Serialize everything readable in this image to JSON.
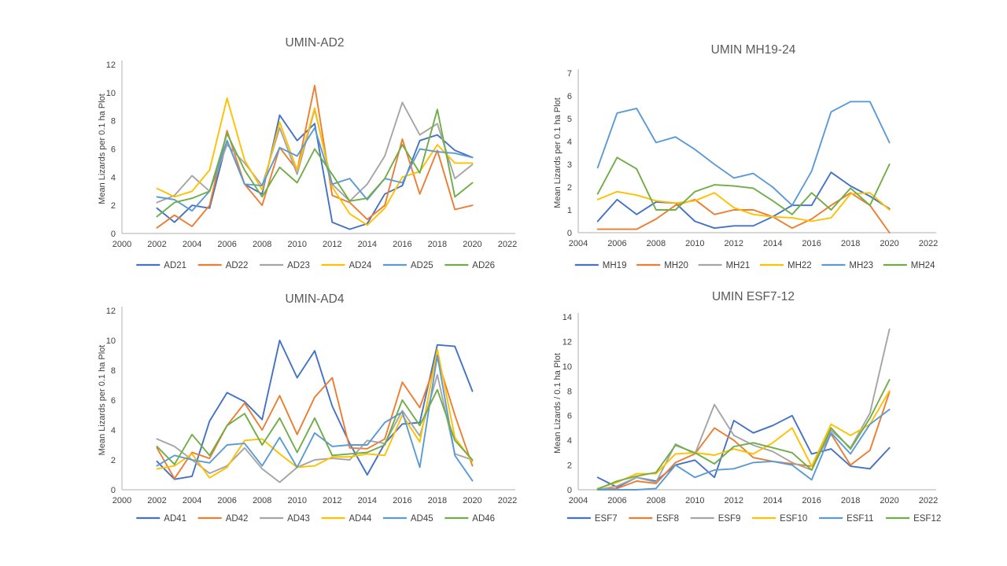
{
  "page": {
    "background": "#ffffff",
    "title_color": "#595959",
    "tick_color": "#404040",
    "axis_color": "#bfbfbf"
  },
  "palette": {
    "blue": "#4472C4",
    "orange": "#ED7D31",
    "gray": "#A5A5A5",
    "yellow": "#FFC000",
    "light_blue": "#5B9BD5",
    "green": "#70AD47"
  },
  "chart_data": [
    {
      "type": "line",
      "title": "UMIN-AD2",
      "xlabel": "",
      "ylabel": "Mean Lizards per 0.1 ha Plot",
      "xlim": [
        2000,
        2022
      ],
      "ylim": [
        0,
        12
      ],
      "x_ticks": [
        2000,
        2002,
        2004,
        2006,
        2008,
        2010,
        2012,
        2014,
        2016,
        2018,
        2020,
        2022
      ],
      "y_ticks": [
        0,
        2,
        4,
        6,
        8,
        10,
        12
      ],
      "grid": false,
      "legend_position": "bottom",
      "x": [
        2002,
        2003,
        2004,
        2005,
        2006,
        2007,
        2008,
        2009,
        2010,
        2011,
        2012,
        2013,
        2014,
        2015,
        2016,
        2017,
        2018,
        2019,
        2020
      ],
      "series": [
        {
          "name": "AD21",
          "color": "#4472C4",
          "values": [
            1.8,
            0.8,
            2.0,
            1.8,
            6.6,
            3.5,
            2.8,
            8.4,
            6.6,
            7.8,
            0.8,
            0.3,
            0.7,
            2.8,
            3.4,
            6.6,
            7.0,
            5.9,
            5.4
          ]
        },
        {
          "name": "AD22",
          "color": "#ED7D31",
          "values": [
            0.4,
            1.3,
            0.5,
            2.0,
            7.3,
            3.5,
            2.0,
            6.1,
            4.5,
            10.5,
            2.7,
            2.2,
            1.0,
            2.0,
            6.7,
            2.8,
            5.9,
            1.7,
            2.0
          ]
        },
        {
          "name": "AD23",
          "color": "#A5A5A5",
          "values": [
            2.2,
            2.7,
            4.1,
            3.0,
            6.3,
            5.0,
            3.4,
            7.5,
            4.2,
            8.8,
            3.5,
            2.3,
            3.5,
            5.5,
            9.3,
            7.0,
            7.8,
            3.9,
            4.9
          ]
        },
        {
          "name": "AD24",
          "color": "#FFC000",
          "values": [
            3.2,
            2.6,
            3.0,
            4.5,
            9.6,
            5.2,
            3.1,
            7.9,
            4.5,
            8.9,
            3.3,
            1.4,
            0.6,
            1.8,
            4.0,
            4.4,
            6.3,
            5.0,
            5.0
          ]
        },
        {
          "name": "AD25",
          "color": "#5B9BD5",
          "values": [
            2.6,
            2.4,
            1.6,
            3.0,
            6.6,
            3.5,
            3.4,
            6.1,
            5.5,
            7.5,
            3.5,
            3.9,
            2.4,
            3.9,
            3.6,
            6.0,
            5.8,
            5.7,
            5.4
          ]
        },
        {
          "name": "AD26",
          "color": "#70AD47",
          "values": [
            1.2,
            2.2,
            2.5,
            3.0,
            7.1,
            4.5,
            2.6,
            4.7,
            3.6,
            6.0,
            4.2,
            2.3,
            2.5,
            3.9,
            6.3,
            4.3,
            8.8,
            2.6,
            3.6
          ]
        }
      ]
    },
    {
      "type": "line",
      "title": "UMIN MH19-24",
      "xlabel": "",
      "ylabel": "Mean Lizards per 0.1 ha Plot",
      "xlim": [
        2004,
        2022
      ],
      "ylim": [
        0,
        7
      ],
      "x_ticks": [
        2004,
        2006,
        2008,
        2010,
        2012,
        2014,
        2016,
        2018,
        2020,
        2022
      ],
      "y_ticks": [
        0,
        1,
        2,
        3,
        4,
        5,
        6,
        7
      ],
      "grid": false,
      "legend_position": "bottom",
      "x": [
        2005,
        2006,
        2007,
        2008,
        2009,
        2010,
        2011,
        2012,
        2013,
        2014,
        2015,
        2016,
        2017,
        2018,
        2019,
        2020
      ],
      "series": [
        {
          "name": "MH19",
          "color": "#4472C4",
          "values": [
            0.5,
            1.45,
            0.8,
            1.35,
            1.3,
            0.5,
            0.2,
            0.3,
            0.3,
            0.7,
            1.2,
            1.2,
            2.65,
            2.05,
            1.6,
            1.05
          ]
        },
        {
          "name": "MH20",
          "color": "#ED7D31",
          "values": [
            0.15,
            0.15,
            0.15,
            0.6,
            1.2,
            1.45,
            0.8,
            1.0,
            1.0,
            0.7,
            0.2,
            0.6,
            1.2,
            1.75,
            1.2,
            0.0
          ]
        },
        {
          "name": "MH21",
          "color": "#A5A5A5",
          "values": []
        },
        {
          "name": "MH22",
          "color": "#FFC000",
          "values": [
            1.45,
            1.8,
            1.65,
            1.4,
            1.3,
            1.4,
            1.75,
            1.1,
            0.8,
            0.7,
            0.65,
            0.5,
            0.65,
            1.7,
            1.75,
            1.0
          ]
        },
        {
          "name": "MH23",
          "color": "#5B9BD5",
          "values": [
            2.85,
            5.25,
            5.45,
            3.95,
            4.2,
            3.65,
            3.0,
            2.4,
            2.6,
            2.0,
            1.2,
            2.7,
            5.3,
            5.75,
            5.75,
            3.95
          ]
        },
        {
          "name": "MH24",
          "color": "#70AD47",
          "values": [
            1.7,
            3.3,
            2.8,
            1.0,
            1.0,
            1.8,
            2.1,
            2.05,
            1.95,
            1.4,
            0.8,
            1.75,
            1.0,
            1.95,
            1.2,
            3.0
          ]
        }
      ]
    },
    {
      "type": "line",
      "title": "UMIN-AD4",
      "xlabel": "",
      "ylabel": "Mean Lizards per 0.1 ha Plot",
      "xlim": [
        2000,
        2022
      ],
      "ylim": [
        0,
        12
      ],
      "x_ticks": [
        2000,
        2002,
        2004,
        2006,
        2008,
        2010,
        2012,
        2014,
        2016,
        2018,
        2020,
        2022
      ],
      "y_ticks": [
        0,
        2,
        4,
        6,
        8,
        10,
        12
      ],
      "grid": false,
      "legend_position": "bottom",
      "x": [
        2002,
        2003,
        2004,
        2005,
        2006,
        2007,
        2008,
        2009,
        2010,
        2011,
        2012,
        2013,
        2014,
        2015,
        2016,
        2017,
        2018,
        2019,
        2020
      ],
      "series": [
        {
          "name": "AD41",
          "color": "#4472C4",
          "values": [
            1.9,
            0.7,
            0.9,
            4.6,
            6.5,
            5.9,
            4.7,
            10.0,
            7.5,
            9.3,
            5.6,
            3.1,
            1.0,
            3.1,
            4.4,
            4.5,
            9.7,
            9.6,
            6.6
          ]
        },
        {
          "name": "AD42",
          "color": "#ED7D31",
          "values": [
            2.8,
            0.75,
            2.5,
            2.1,
            4.3,
            5.8,
            4.0,
            6.3,
            3.7,
            6.2,
            7.5,
            2.8,
            2.75,
            3.4,
            7.2,
            5.5,
            8.8,
            5.0,
            1.6
          ]
        },
        {
          "name": "AD43",
          "color": "#A5A5A5",
          "values": [
            3.4,
            2.9,
            2.0,
            1.1,
            1.6,
            2.8,
            1.4,
            0.5,
            1.5,
            2.0,
            2.1,
            2.0,
            3.3,
            3.1,
            5.3,
            3.6,
            7.7,
            2.4,
            2.0
          ]
        },
        {
          "name": "AD44",
          "color": "#FFC000",
          "values": [
            1.4,
            1.6,
            2.4,
            0.8,
            1.5,
            3.3,
            3.4,
            2.4,
            1.5,
            1.6,
            2.2,
            2.2,
            2.4,
            2.3,
            5.0,
            3.2,
            9.4,
            3.5,
            1.9
          ]
        },
        {
          "name": "AD45",
          "color": "#5B9BD5",
          "values": [
            1.6,
            2.3,
            2.0,
            1.8,
            3.0,
            3.1,
            1.6,
            3.5,
            1.5,
            3.8,
            2.9,
            3.0,
            3.0,
            4.5,
            5.2,
            1.5,
            9.0,
            2.3,
            0.6
          ]
        },
        {
          "name": "AD46",
          "color": "#70AD47",
          "values": [
            2.9,
            1.7,
            3.7,
            2.3,
            4.3,
            5.1,
            3.0,
            4.8,
            2.5,
            4.8,
            2.3,
            2.4,
            2.5,
            3.0,
            6.0,
            4.3,
            6.7,
            3.3,
            2.0
          ]
        }
      ]
    },
    {
      "type": "line",
      "title": "UMIN ESF7-12",
      "xlabel": "",
      "ylabel": "Mean Lizards / 0.1 ha Plot",
      "xlim": [
        2004,
        2022
      ],
      "ylim": [
        0,
        14
      ],
      "x_ticks": [
        2004,
        2006,
        2008,
        2010,
        2012,
        2014,
        2016,
        2018,
        2020,
        2022
      ],
      "y_ticks": [
        0,
        2,
        4,
        6,
        8,
        10,
        12,
        14
      ],
      "grid": false,
      "legend_position": "bottom",
      "x": [
        2005,
        2006,
        2007,
        2008,
        2009,
        2010,
        2011,
        2012,
        2013,
        2014,
        2015,
        2016,
        2017,
        2018,
        2019,
        2020
      ],
      "series": [
        {
          "name": "ESF7",
          "color": "#4472C4",
          "values": [
            1.0,
            0.2,
            1.0,
            0.7,
            2.0,
            2.4,
            1.0,
            5.6,
            4.6,
            5.2,
            6.0,
            2.9,
            3.3,
            1.9,
            1.7,
            3.4
          ]
        },
        {
          "name": "ESF8",
          "color": "#ED7D31",
          "values": [
            0.05,
            0.1,
            0.7,
            0.5,
            2.2,
            2.9,
            5.0,
            4.0,
            2.6,
            2.3,
            2.1,
            1.9,
            4.5,
            2.0,
            3.2,
            7.9
          ]
        },
        {
          "name": "ESF9",
          "color": "#A5A5A5",
          "values": [
            0.0,
            0.3,
            1.0,
            0.6,
            3.7,
            2.9,
            6.9,
            4.4,
            3.6,
            3.1,
            2.2,
            1.6,
            4.8,
            3.4,
            6.2,
            13.0
          ]
        },
        {
          "name": "ESF10",
          "color": "#FFC000",
          "values": [
            0.1,
            0.6,
            1.3,
            1.3,
            2.9,
            3.0,
            2.8,
            3.3,
            2.9,
            3.8,
            5.0,
            1.9,
            5.3,
            4.4,
            5.3,
            8.0
          ]
        },
        {
          "name": "ESF11",
          "color": "#5B9BD5",
          "values": [
            0.0,
            0.0,
            0.0,
            0.1,
            2.0,
            1.0,
            1.6,
            1.7,
            2.2,
            2.3,
            2.0,
            0.8,
            4.6,
            2.9,
            5.3,
            6.5
          ]
        },
        {
          "name": "ESF12",
          "color": "#70AD47",
          "values": [
            0.05,
            0.7,
            1.1,
            1.4,
            3.6,
            3.0,
            2.1,
            3.5,
            3.8,
            3.4,
            3.0,
            1.6,
            5.0,
            3.3,
            5.8,
            8.9
          ]
        }
      ]
    }
  ]
}
